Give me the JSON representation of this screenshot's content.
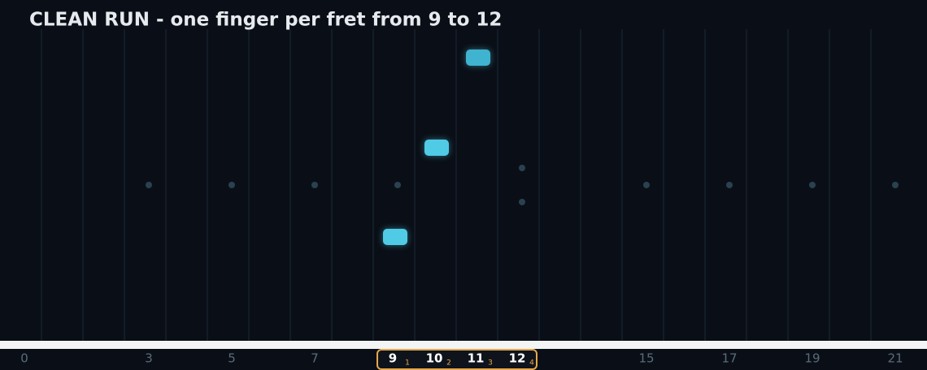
{
  "header": {
    "title": "CLEAN RUN - one finger per fret from 9 to 12"
  },
  "fret_labels": [
    "0",
    "3",
    "5",
    "7",
    "15",
    "17",
    "19",
    "21"
  ],
  "highlight": {
    "frets": [
      "9",
      "10",
      "11",
      "12"
    ],
    "fingers": [
      "1",
      "2",
      "3",
      "4"
    ]
  }
}
